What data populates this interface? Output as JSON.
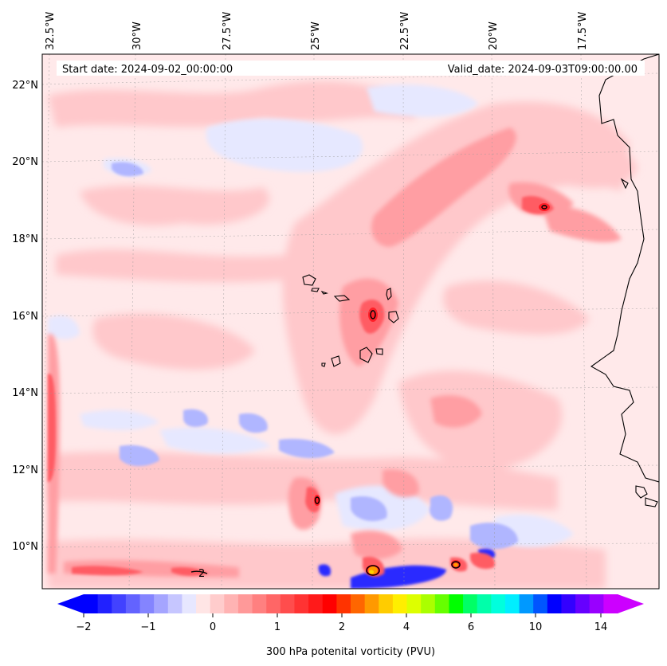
{
  "map": {
    "start_date": "Start date: 2024-09-02_00:00:00",
    "valid_date": "Valid_date: 2024-09-03T09:00:00.00",
    "lon_labels": [
      "32.5°W",
      "30°W",
      "27.5°W",
      "25°W",
      "22.5°W",
      "20°W",
      "17.5°W"
    ],
    "lat_labels": [
      "22°N",
      "20°N",
      "18°N",
      "16°N",
      "14°N",
      "12°N",
      "10°N"
    ],
    "contour_label": "2",
    "colors": {
      "background": "#ffe9ea",
      "light_red": "#ffc8cb",
      "medium_red": "#ff9ea3",
      "strong_red": "#ff5c63",
      "core_red": "#ff1f28",
      "light_blue": "#e6e8ff",
      "blue": "#b0b6ff",
      "deep_blue": "#2a2aff",
      "orange": "#ff9a00",
      "yellow": "#ffd400"
    }
  },
  "colorbar": {
    "label": "300 hPa potenital vorticity (PVU)",
    "tick_labels": [
      "−2",
      "−1",
      "0",
      "1",
      "2",
      "4",
      "6",
      "10",
      "14"
    ],
    "colors": [
      "#0000ff",
      "#2121ff",
      "#4242ff",
      "#6363ff",
      "#8484ff",
      "#a5a5ff",
      "#c6c6ff",
      "#e7e7ff",
      "#ffe5e5",
      "#ffcccc",
      "#ffb3b3",
      "#ff9999",
      "#ff8080",
      "#ff6666",
      "#ff4d4d",
      "#ff3333",
      "#ff1a1a",
      "#ff0000",
      "#ff3300",
      "#ff6600",
      "#ff9900",
      "#ffcc00",
      "#ffee00",
      "#ddff00",
      "#aaff00",
      "#66ff00",
      "#00ff00",
      "#00ff66",
      "#00ffaa",
      "#00ffdd",
      "#00eeff",
      "#0099ff",
      "#0055ff",
      "#0000ff",
      "#3300ff",
      "#6600ff",
      "#9900ff",
      "#cc00ff"
    ],
    "min_extend_color": "#0000ff",
    "max_extend_color": "#cc00ff"
  }
}
